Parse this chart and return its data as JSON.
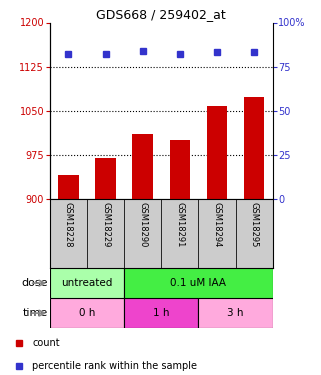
{
  "title": "GDS668 / 259402_at",
  "samples": [
    "GSM18228",
    "GSM18229",
    "GSM18290",
    "GSM18291",
    "GSM18294",
    "GSM18295"
  ],
  "bar_values": [
    940,
    970,
    1010,
    1000,
    1058,
    1073
  ],
  "percentile_values": [
    82,
    82,
    84,
    82,
    83,
    83
  ],
  "bar_color": "#cc0000",
  "dot_color": "#3333cc",
  "ylim_left": [
    900,
    1200
  ],
  "ylim_right": [
    0,
    100
  ],
  "yticks_left": [
    900,
    975,
    1050,
    1125,
    1200
  ],
  "yticks_right": [
    0,
    25,
    50,
    75,
    100
  ],
  "grid_values": [
    975,
    1050,
    1125
  ],
  "dose_labels": [
    {
      "text": "untreated",
      "span": [
        0,
        2
      ],
      "color": "#aaffaa"
    },
    {
      "text": "0.1 uM IAA",
      "span": [
        2,
        6
      ],
      "color": "#44ee44"
    }
  ],
  "time_labels": [
    {
      "text": "0 h",
      "span": [
        0,
        2
      ],
      "color": "#ffaadd"
    },
    {
      "text": "1 h",
      "span": [
        2,
        4
      ],
      "color": "#ee44cc"
    },
    {
      "text": "3 h",
      "span": [
        4,
        6
      ],
      "color": "#ffaadd"
    }
  ],
  "dose_arrow_label": "dose",
  "time_arrow_label": "time",
  "bar_width": 0.55,
  "tick_fontsize": 7,
  "title_fontsize": 9,
  "legend_count_color": "#cc0000",
  "legend_dot_color": "#3333cc",
  "sample_bg": "#cccccc"
}
